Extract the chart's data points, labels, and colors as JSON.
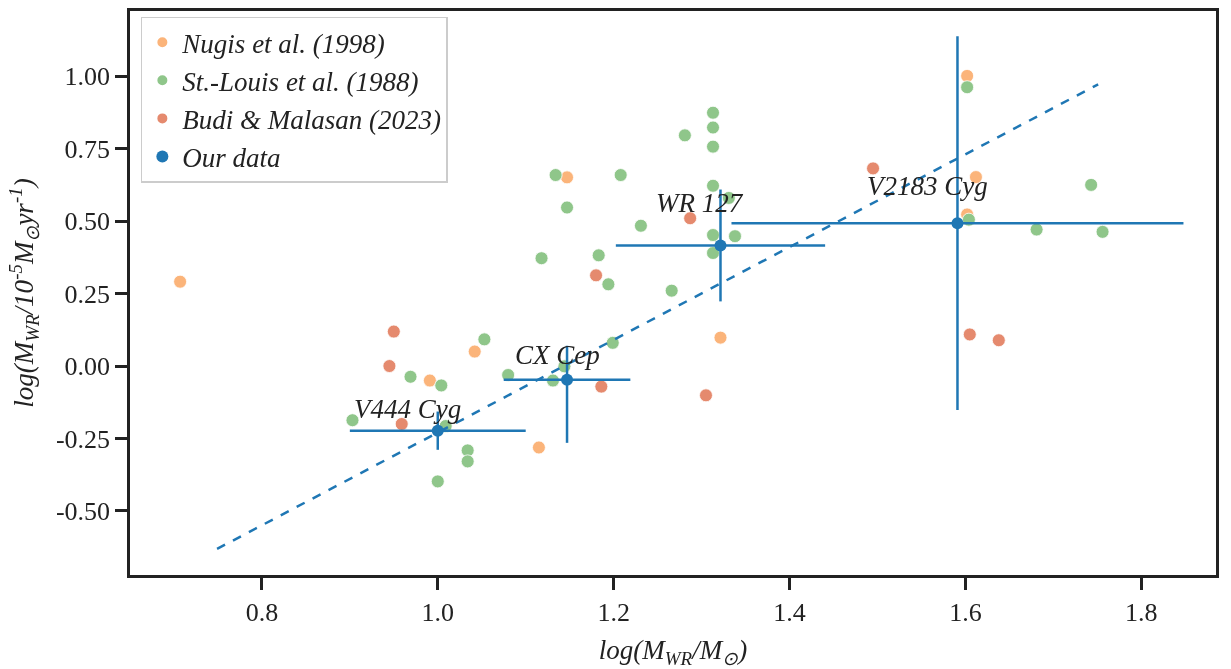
{
  "chart_data": {
    "type": "scatter",
    "xlabel": "log(M$_{WR}$/M$_{⊙}$)",
    "ylabel": "log(M$_{WR}$/10$^{-5}$M$_{⊙}$yr$^{-1}$)",
    "xlim": [
      0.65,
      1.885
    ],
    "ylim": [
      -0.721,
      1.225
    ],
    "xticks": [
      {
        "value": 0.8,
        "label": "0.8"
      },
      {
        "value": 1.0,
        "label": "1.0"
      },
      {
        "value": 1.2,
        "label": "1.2"
      },
      {
        "value": 1.4,
        "label": "1.4"
      },
      {
        "value": 1.6,
        "label": "1.6"
      },
      {
        "value": 1.8,
        "label": "1.8"
      }
    ],
    "yticks": [
      {
        "value": -0.5,
        "label": "-0.50"
      },
      {
        "value": -0.25,
        "label": "-0.25"
      },
      {
        "value": 0,
        "label": "0.00"
      },
      {
        "value": 0.25,
        "label": "0.25"
      },
      {
        "value": 0.5,
        "label": "0.50"
      },
      {
        "value": 0.75,
        "label": "0.75"
      },
      {
        "value": 1.0,
        "label": "1.00"
      }
    ],
    "legend": "top left",
    "marker": "circle",
    "series": [
      {
        "name": "Nugis et al. (1998)",
        "color": "#fbb47a",
        "x": [
          0.707,
          1.147,
          1.042,
          0.991,
          1.115,
          1.3215,
          1.602,
          1.612,
          1.602
        ],
        "values": [
          0.291,
          0.651,
          0.05,
          -0.05,
          -0.281,
          0.098,
          1.001,
          0.652,
          0.523
        ]
      },
      {
        "name": "St.-Louis et al. (1988)",
        "color": "#8fc68a",
        "x": [
          1.134,
          1.208,
          1.147,
          1.231,
          1.118,
          1.183,
          1.194,
          1.281,
          1.313,
          1.313,
          1.313,
          1.313,
          1.331,
          1.313,
          1.338,
          1.313,
          1.266,
          1.602,
          1.604,
          1.743,
          1.681,
          1.756,
          1.053,
          0.969,
          1.004,
          0.903,
          1.009,
          1.034,
          1.034,
          1.0,
          1.08,
          1.131,
          1.144,
          1.199
        ],
        "values": [
          0.659,
          0.659,
          0.547,
          0.484,
          0.372,
          0.382,
          0.282,
          0.796,
          0.874,
          0.823,
          0.757,
          0.622,
          0.58,
          0.452,
          0.448,
          0.39,
          0.26,
          0.962,
          0.505,
          0.625,
          0.471,
          0.463,
          0.092,
          -0.037,
          -0.067,
          -0.187,
          -0.207,
          -0.291,
          -0.329,
          -0.398,
          -0.031,
          -0.05,
          -0.001,
          0.08
        ]
      },
      {
        "name": "Budi & Malasan (2023)",
        "color": "#e58a6e",
        "x": [
          1.18,
          1.287,
          1.495,
          0.95,
          0.945,
          0.959,
          1.186,
          1.305,
          1.605,
          1.638
        ],
        "values": [
          0.313,
          0.51,
          0.682,
          0.119,
          0.0,
          -0.2,
          -0.071,
          -0.101,
          0.109,
          0.089
        ]
      },
      {
        "type": "line",
        "color": "#1f77b4",
        "line_style": "dashed",
        "marker": "none",
        "x": [
          0.749,
          1.751
        ],
        "values": [
          -0.631,
          0.972
        ]
      },
      {
        "name": "Our data",
        "color": "#1f77b4",
        "x": [
          1.0,
          1.147,
          1.3215,
          1.591
        ],
        "values": [
          -0.223,
          -0.047,
          0.416,
          0.493
        ],
        "errors": [
          0.066,
          [
            -0.265,
            0.07
          ],
          0.193,
          0.645
        ],
        "xerrors": [
          0.1,
          0.072,
          0.119,
          0.257
        ]
      }
    ],
    "annotations": [
      {
        "text": "V444 Cyg",
        "x": 1.0,
        "y": -0.223
      },
      {
        "text": "CX Cep",
        "x": 1.147,
        "y": -0.047
      },
      {
        "text": "WR 127",
        "x": 1.3215,
        "y": 0.416
      },
      {
        "text": "V2183 Cyg",
        "x": 1.591,
        "y": 0.493
      }
    ]
  }
}
